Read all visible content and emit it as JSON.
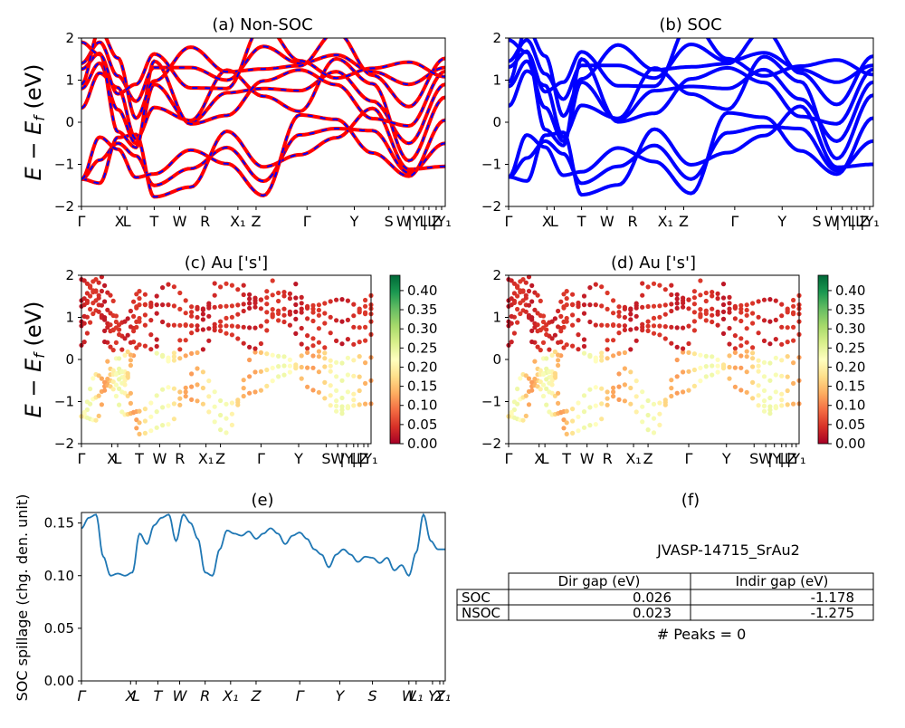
{
  "page_ylabel": "E - E_f (eV)",
  "kpath_labels": [
    "Γ",
    "X",
    "L",
    "T",
    "W",
    "R",
    "X₁",
    "Z",
    "Γ",
    "Y",
    "S",
    "W",
    "|Y",
    "L",
    "|L",
    "Z",
    "|Y₁"
  ],
  "kpath_labels_e": [
    "Γ",
    "X",
    "L",
    "T",
    "W",
    "R",
    "X₁",
    "Z",
    "Γ",
    "Y",
    "S",
    "W",
    "L₁",
    "Y",
    "Z",
    "Y₁"
  ],
  "chart_data": [
    {
      "id": "a",
      "type": "line",
      "title": "(a) Non-SOC",
      "ylabel": "E - E_f (eV)",
      "ylim": [
        -2,
        2
      ],
      "yticks": [
        -2,
        -1,
        0,
        1,
        2
      ],
      "series_colors": [
        "#ff0000",
        "#0000ff"
      ],
      "line_style": "red solid with blue dashes",
      "bands_sampled": [
        {
          "name": "band-1",
          "x": [
            0,
            0.05,
            0.1,
            0.15,
            0.2,
            0.3,
            0.4,
            0.5,
            0.6,
            0.7,
            0.8,
            0.9,
            1.0
          ],
          "y": [
            -1.35,
            -0.9,
            -0.5,
            -0.8,
            -1.5,
            -1.1,
            -0.6,
            -1.4,
            -0.3,
            -0.15,
            -0.2,
            -1.2,
            -0.5
          ]
        },
        {
          "name": "band-2",
          "x": [
            0,
            0.05,
            0.1,
            0.15,
            0.2,
            0.3,
            0.4,
            0.5,
            0.6,
            0.7,
            0.8,
            0.9,
            1.0
          ],
          "y": [
            0.8,
            1.4,
            0.3,
            -0.5,
            0.9,
            0.0,
            0.7,
            0.8,
            0.75,
            1.2,
            0.5,
            -0.5,
            0.9
          ]
        },
        {
          "name": "band-3",
          "x": [
            0,
            0.05,
            0.1,
            0.15,
            0.2,
            0.3,
            0.4,
            0.5,
            0.6,
            0.7,
            0.8,
            0.9,
            1.0
          ],
          "y": [
            1.4,
            1.9,
            1.1,
            0.5,
            1.3,
            1.3,
            1.0,
            1.8,
            1.4,
            1.6,
            1.2,
            0.9,
            1.3
          ]
        }
      ]
    },
    {
      "id": "b",
      "type": "line",
      "title": "(b) SOC",
      "ylabel": "",
      "ylim": [
        -2,
        2
      ],
      "yticks": [
        -2,
        -1,
        0,
        1,
        2
      ],
      "series_colors": [
        "#0000ff"
      ],
      "bands_sampled": [
        {
          "name": "band-1",
          "x": [
            0,
            0.05,
            0.1,
            0.15,
            0.2,
            0.3,
            0.4,
            0.5,
            0.6,
            0.7,
            0.8,
            0.9,
            1.0
          ],
          "y": [
            -1.3,
            -0.85,
            -0.45,
            -0.75,
            -1.45,
            -1.05,
            -0.55,
            -1.35,
            -0.25,
            -0.1,
            -0.15,
            -1.15,
            -0.45
          ]
        },
        {
          "name": "band-2",
          "x": [
            0,
            0.05,
            0.1,
            0.15,
            0.2,
            0.3,
            0.4,
            0.5,
            0.6,
            0.7,
            0.8,
            0.9,
            1.0
          ],
          "y": [
            0.85,
            1.45,
            0.35,
            -0.45,
            0.95,
            0.05,
            0.75,
            0.85,
            0.8,
            1.25,
            0.55,
            -0.45,
            0.95
          ]
        },
        {
          "name": "band-3",
          "x": [
            0,
            0.05,
            0.1,
            0.15,
            0.2,
            0.3,
            0.4,
            0.5,
            0.6,
            0.7,
            0.8,
            0.9,
            1.0
          ],
          "y": [
            1.45,
            1.95,
            1.15,
            0.55,
            1.35,
            1.35,
            1.05,
            1.85,
            1.45,
            1.65,
            1.25,
            0.95,
            1.35
          ]
        }
      ]
    },
    {
      "id": "c",
      "type": "scatter",
      "title": "(c)  Au ['s']",
      "ylabel": "E - E_f (eV)",
      "ylim": [
        -2,
        2
      ],
      "yticks": [
        -2,
        -1,
        0,
        1,
        2
      ],
      "colorbar": {
        "ticks": [
          "0.00",
          "0.05",
          "0.10",
          "0.15",
          "0.20",
          "0.25",
          "0.30",
          "0.35",
          "0.40"
        ],
        "range": [
          0,
          0.44
        ],
        "colormap": "RdYlGn"
      }
    },
    {
      "id": "d",
      "type": "scatter",
      "title": "(d) Au ['s']",
      "ylabel": "",
      "ylim": [
        -2,
        2
      ],
      "yticks": [
        -2,
        -1,
        0,
        1,
        2
      ],
      "colorbar": {
        "ticks": [
          "0.00",
          "0.05",
          "0.10",
          "0.15",
          "0.20",
          "0.25",
          "0.30",
          "0.35",
          "0.40"
        ],
        "range": [
          0,
          0.44
        ],
        "colormap": "RdYlGn"
      }
    },
    {
      "id": "e",
      "type": "line",
      "title": "(e)",
      "ylabel": "SOC spillage (chg. den. unit)",
      "ylim": [
        0,
        0.16
      ],
      "yticks": [
        "0.00",
        "0.05",
        "0.10",
        "0.15"
      ],
      "series_colors": [
        "#1f77b4"
      ],
      "x": [
        0,
        0.02,
        0.04,
        0.06,
        0.08,
        0.1,
        0.12,
        0.14,
        0.16,
        0.18,
        0.2,
        0.22,
        0.24,
        0.26,
        0.28,
        0.3,
        0.32,
        0.34,
        0.36,
        0.38,
        0.4,
        0.42,
        0.44,
        0.46,
        0.48,
        0.5,
        0.52,
        0.54,
        0.56,
        0.58,
        0.6,
        0.62,
        0.64,
        0.66,
        0.68,
        0.7,
        0.72,
        0.74,
        0.76,
        0.78,
        0.8,
        0.82,
        0.84,
        0.86,
        0.88,
        0.9,
        0.92,
        0.94,
        0.96,
        0.98,
        1.0
      ],
      "y": [
        0.145,
        0.155,
        0.158,
        0.118,
        0.1,
        0.102,
        0.1,
        0.103,
        0.14,
        0.13,
        0.148,
        0.155,
        0.158,
        0.133,
        0.158,
        0.15,
        0.135,
        0.103,
        0.1,
        0.125,
        0.143,
        0.14,
        0.138,
        0.142,
        0.135,
        0.14,
        0.145,
        0.14,
        0.13,
        0.138,
        0.141,
        0.135,
        0.125,
        0.12,
        0.108,
        0.12,
        0.125,
        0.12,
        0.113,
        0.118,
        0.117,
        0.112,
        0.117,
        0.105,
        0.11,
        0.1,
        0.122,
        0.158,
        0.133,
        0.125,
        0.125
      ]
    }
  ],
  "panel_f": {
    "title": "(f)",
    "material": "JVASP-14715_SrAu2",
    "table": {
      "columns": [
        "",
        "Dir gap (eV)",
        "Indir gap (eV)"
      ],
      "rows": [
        [
          "SOC",
          "0.026",
          "-1.178"
        ],
        [
          "NSOC",
          "0.023",
          "-1.275"
        ]
      ]
    },
    "peaks": "# Peaks = 0"
  }
}
